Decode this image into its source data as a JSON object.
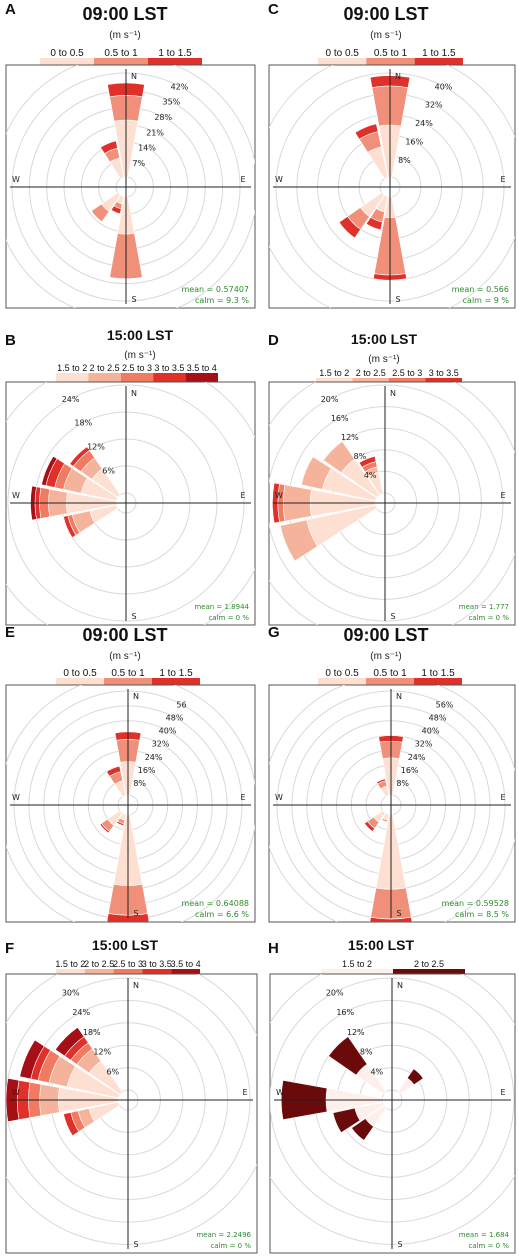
{
  "figure": {
    "panels": [
      {
        "id": "A",
        "title": "09:00 LST",
        "unit": "(m s⁻¹)",
        "legend": [
          "0 to 0.5",
          "0.5 to 1",
          "1 to 1.5"
        ],
        "colors": [
          "#fde0d2",
          "#f0907a",
          "#e0302a"
        ],
        "ring_labels": [
          "7%",
          "14%",
          "21%",
          "28%",
          "35%",
          "42%"
        ],
        "dirs": [
          "N",
          "E",
          "S",
          "W"
        ],
        "mean": "mean = 0.57407",
        "calm": "calm = 9.3 %"
      },
      {
        "id": "C",
        "title": "09:00 LST",
        "unit": "(m s⁻¹)",
        "legend": [
          "0 to 0.5",
          "0.5 to 1",
          "1 to 1.5"
        ],
        "colors": [
          "#fde0d2",
          "#f0907a",
          "#e0302a"
        ],
        "ring_labels": [
          "8%",
          "16%",
          "24%",
          "32%",
          "40%"
        ],
        "dirs": [
          "N",
          "E",
          "S",
          "W"
        ],
        "mean": "mean = 0.566",
        "calm": "calm = 9 %"
      },
      {
        "id": "B",
        "title": "15:00 LST",
        "unit": "(m s⁻¹)",
        "legend": [
          "1.5 to 2",
          "2 to 2.5",
          "2.5 to 3",
          "3 to 3.5",
          "3.5 to 4"
        ],
        "colors": [
          "#fde0d2",
          "#f6b39c",
          "#f07a62",
          "#e0302a",
          "#a50f15"
        ],
        "ring_labels": [
          "6%",
          "12%",
          "18%",
          "24%"
        ],
        "dirs": [
          "N",
          "E",
          "S",
          "W"
        ],
        "mean": "mean = 1.8944",
        "calm": "calm = 0 %"
      },
      {
        "id": "D",
        "title": "15:00 LST",
        "unit": "(m s⁻¹)",
        "legend": [
          "1.5 to 2",
          "2 to 2.5",
          "2.5 to 3",
          "3 to 3.5"
        ],
        "colors": [
          "#fde0d2",
          "#f6b39c",
          "#f07a62",
          "#e0302a"
        ],
        "ring_labels": [
          "4%",
          "8%",
          "12%",
          "16%",
          "20%"
        ],
        "dirs": [
          "N",
          "E",
          "S",
          "W"
        ],
        "mean": "mean = 1.777",
        "calm": "calm = 0 %"
      },
      {
        "id": "E",
        "title": "09:00 LST",
        "unit": "(m s⁻¹)",
        "legend": [
          "0 to 0.5",
          "0.5 to 1",
          "1 to 1.5"
        ],
        "colors": [
          "#fde0d2",
          "#f0907a",
          "#e0302a"
        ],
        "ring_labels": [
          "8%",
          "16%",
          "24%",
          "32%",
          "40%",
          "48%",
          "56"
        ],
        "dirs": [
          "N",
          "E",
          "S",
          "W"
        ],
        "mean": "mean = 0.64088",
        "calm": "calm = 6.6 %"
      },
      {
        "id": "G",
        "title": "09:00 LST",
        "unit": "(m s⁻¹)",
        "legend": [
          "0 to 0.5",
          "0.5 to 1",
          "1 to 1.5"
        ],
        "colors": [
          "#fde0d2",
          "#f0907a",
          "#e0302a"
        ],
        "ring_labels": [
          "8%",
          "16%",
          "24%",
          "32%",
          "40%",
          "48%",
          "56%"
        ],
        "dirs": [
          "N",
          "E",
          "S",
          "W"
        ],
        "mean": "mean = 0.59528",
        "calm": "calm = 8.5 %"
      },
      {
        "id": "F",
        "title": "15:00 LST",
        "unit": "(m s⁻¹)",
        "legend": [
          "1.5 to 2",
          "2 to 2.5",
          "2.5 to 3",
          "3 to 3.5",
          "3.5 to 4"
        ],
        "colors": [
          "#fde0d2",
          "#f6b39c",
          "#f07a62",
          "#e0302a",
          "#a50f15"
        ],
        "ring_labels": [
          "6%",
          "12%",
          "18%",
          "24%",
          "30%"
        ],
        "dirs": [
          "N",
          "E",
          "S",
          "W"
        ],
        "mean": "mean = 2.2496",
        "calm": "calm = 0 %"
      },
      {
        "id": "H",
        "title": "15:00 LST",
        "unit": "",
        "legend": [
          "1.5 to 2",
          "2 to 2.5"
        ],
        "colors": [
          "#fdf0ea",
          "#6b0a0a"
        ],
        "ring_labels": [
          "4%",
          "8%",
          "12%",
          "16%",
          "20%"
        ],
        "dirs": [
          "N",
          "E",
          "S",
          "W"
        ],
        "mean": "mean = 1.684",
        "calm": "calm = 0 %"
      }
    ]
  },
  "chart_data": [
    {
      "id": "A",
      "type": "windrose",
      "bins": [
        "0 to 0.5",
        "0.5 to 1",
        "1 to 1.5"
      ],
      "directions": [
        "N",
        "NNW",
        "SSW",
        "SW",
        "S"
      ],
      "values": [
        [
          23,
          10,
          5
        ],
        [
          8,
          4,
          3
        ],
        [
          3,
          2,
          2
        ],
        [
          8,
          5,
          0
        ],
        [
          15,
          18,
          0
        ]
      ],
      "rmax": 42
    },
    {
      "id": "C",
      "type": "windrose",
      "bins": [
        "0 to 0.5",
        "0.5 to 1",
        "1 to 1.5"
      ],
      "directions": [
        "N",
        "NNW",
        "SSW",
        "SW",
        "S"
      ],
      "values": [
        [
          20,
          15,
          4
        ],
        [
          12,
          6,
          3
        ],
        [
          6,
          4,
          3
        ],
        [
          10,
          6,
          4
        ],
        [
          8,
          22,
          2
        ]
      ],
      "rmax": 40
    },
    {
      "id": "B",
      "type": "windrose",
      "bins": [
        "1.5 to 2",
        "2 to 2.5",
        "2.5 to 3",
        "3 to 3.5",
        "3.5 to 4"
      ],
      "directions": [
        "NW",
        "WNW",
        "W",
        "WSW"
      ],
      "values": [
        [
          7,
          3,
          2,
          1,
          0
        ],
        [
          8,
          4,
          2,
          2,
          1
        ],
        [
          11,
          4,
          2,
          1,
          1
        ],
        [
          6,
          4,
          1,
          1,
          0
        ]
      ],
      "rmax": 24
    },
    {
      "id": "D",
      "type": "windrose",
      "bins": [
        "1.5 to 2",
        "2 to 2.5",
        "2.5 to 3",
        "3 to 3.5"
      ],
      "directions": [
        "NNW",
        "NW",
        "WNW",
        "W",
        "WSW"
      ],
      "values": [
        [
          4,
          1,
          1,
          1
        ],
        [
          8,
          4,
          0,
          0
        ],
        [
          10,
          4,
          0,
          0
        ],
        [
          12,
          5,
          1,
          1
        ],
        [
          13,
          5,
          0,
          0
        ]
      ],
      "rmax": 20
    },
    {
      "id": "E",
      "type": "windrose",
      "bins": [
        "0 to 0.5",
        "0.5 to 1",
        "1 to 1.5"
      ],
      "directions": [
        "N",
        "NNW",
        "SSW",
        "SW",
        "S"
      ],
      "values": [
        [
          18,
          12,
          4
        ],
        [
          8,
          5,
          3
        ],
        [
          3,
          2,
          1
        ],
        [
          8,
          4,
          1
        ],
        [
          38,
          16,
          5
        ]
      ],
      "rmax": 56
    },
    {
      "id": "G",
      "type": "windrose",
      "bins": [
        "0 to 0.5",
        "0.5 to 1",
        "1 to 1.5"
      ],
      "directions": [
        "N",
        "NNW",
        "SSW",
        "SW",
        "S"
      ],
      "values": [
        [
          20,
          9,
          3
        ],
        [
          5,
          3,
          1
        ],
        [
          3,
          1,
          0
        ],
        [
          6,
          4,
          2
        ],
        [
          40,
          16,
          5
        ]
      ],
      "rmax": 56
    },
    {
      "id": "F",
      "type": "windrose",
      "bins": [
        "1.5 to 2",
        "2 to 2.5",
        "2.5 to 3",
        "3 to 3.5",
        "3.5 to 4"
      ],
      "directions": [
        "NW",
        "WNW",
        "W",
        "WSW"
      ],
      "values": [
        [
          10,
          4,
          2,
          2,
          3
        ],
        [
          14,
          5,
          3,
          2,
          3
        ],
        [
          16,
          5,
          3,
          3,
          3
        ],
        [
          8,
          3,
          2,
          2,
          0
        ]
      ],
      "rmax": 30
    },
    {
      "id": "H",
      "type": "windrose",
      "bins": [
        "1.5 to 2",
        "2 to 2.5"
      ],
      "directions": [
        "NE",
        "NW",
        "WSW",
        "W",
        "SW"
      ],
      "values": [
        [
          3,
          2
        ],
        [
          6,
          6
        ],
        [
          5,
          4
        ],
        [
          10,
          8
        ],
        [
          4,
          3
        ]
      ],
      "rmax": 20
    }
  ]
}
